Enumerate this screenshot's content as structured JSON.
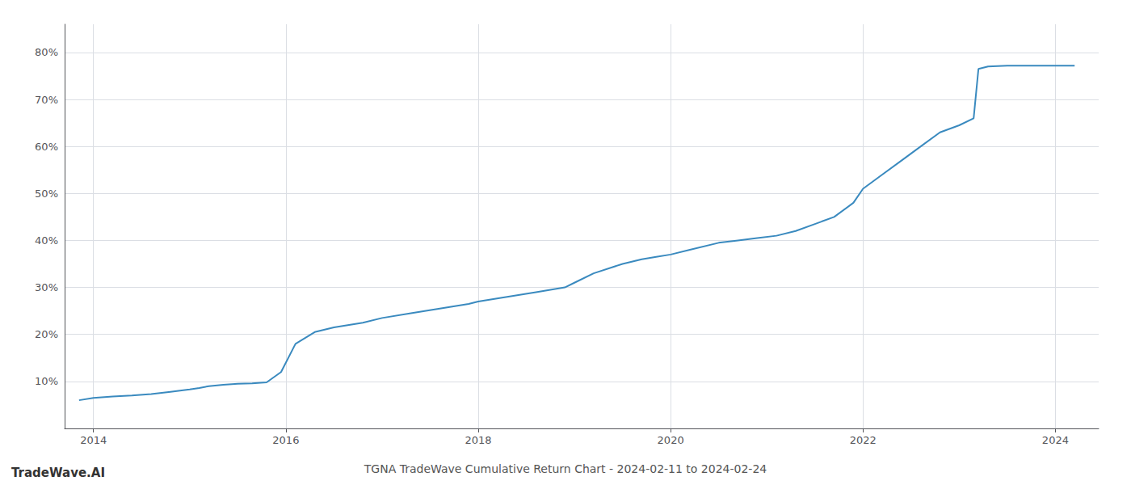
{
  "chart_data": {
    "type": "line",
    "title": "TGNA TradeWave Cumulative Return Chart - 2024-02-11 to 2024-02-24",
    "annotations": [
      "TradeWave.AI"
    ],
    "color": "#3a8abf",
    "x": [
      2013.85,
      2014.0,
      2014.2,
      2014.4,
      2014.6,
      2014.8,
      2015.0,
      2015.1,
      2015.2,
      2015.35,
      2015.5,
      2015.65,
      2015.8,
      2015.95,
      2016.1,
      2016.3,
      2016.5,
      2016.8,
      2017.0,
      2017.3,
      2017.6,
      2017.9,
      2018.0,
      2018.3,
      2018.6,
      2018.9,
      2019.0,
      2019.2,
      2019.5,
      2019.7,
      2019.85,
      2020.0,
      2020.2,
      2020.5,
      2020.7,
      2020.9,
      2021.1,
      2021.3,
      2021.5,
      2021.7,
      2021.9,
      2022.0,
      2022.2,
      2022.4,
      2022.6,
      2022.8,
      2023.0,
      2023.15,
      2023.2,
      2023.3,
      2023.5,
      2023.7,
      2023.9,
      2024.0,
      2024.1,
      2024.2
    ],
    "values": [
      6.0,
      6.5,
      6.8,
      7.0,
      7.3,
      7.8,
      8.3,
      8.6,
      9.0,
      9.3,
      9.5,
      9.6,
      9.8,
      12.0,
      18.0,
      20.5,
      21.5,
      22.5,
      23.5,
      24.5,
      25.5,
      26.5,
      27.0,
      28.0,
      29.0,
      30.0,
      31.0,
      33.0,
      35.0,
      36.0,
      36.5,
      37.0,
      38.0,
      39.5,
      40.0,
      40.5,
      41.0,
      42.0,
      43.5,
      45.0,
      48.0,
      51.0,
      54.0,
      57.0,
      60.0,
      63.0,
      64.5,
      66.0,
      76.5,
      77.0,
      77.2,
      77.2,
      77.2,
      77.2,
      77.2,
      77.2
    ],
    "xlim": [
      2013.7,
      2024.45
    ],
    "xticks": [
      2014,
      2016,
      2018,
      2020,
      2022,
      2024
    ],
    "ylim": [
      0,
      86
    ],
    "yticks": [
      {
        "value": 10,
        "label": "10%"
      },
      {
        "value": 20,
        "label": "20%"
      },
      {
        "value": 30,
        "label": "30%"
      },
      {
        "value": 40,
        "label": "40%"
      },
      {
        "value": 50,
        "label": "50%"
      },
      {
        "value": 60,
        "label": "60%"
      },
      {
        "value": 70,
        "label": "70%"
      },
      {
        "value": 80,
        "label": "80%"
      }
    ],
    "grid": true
  }
}
